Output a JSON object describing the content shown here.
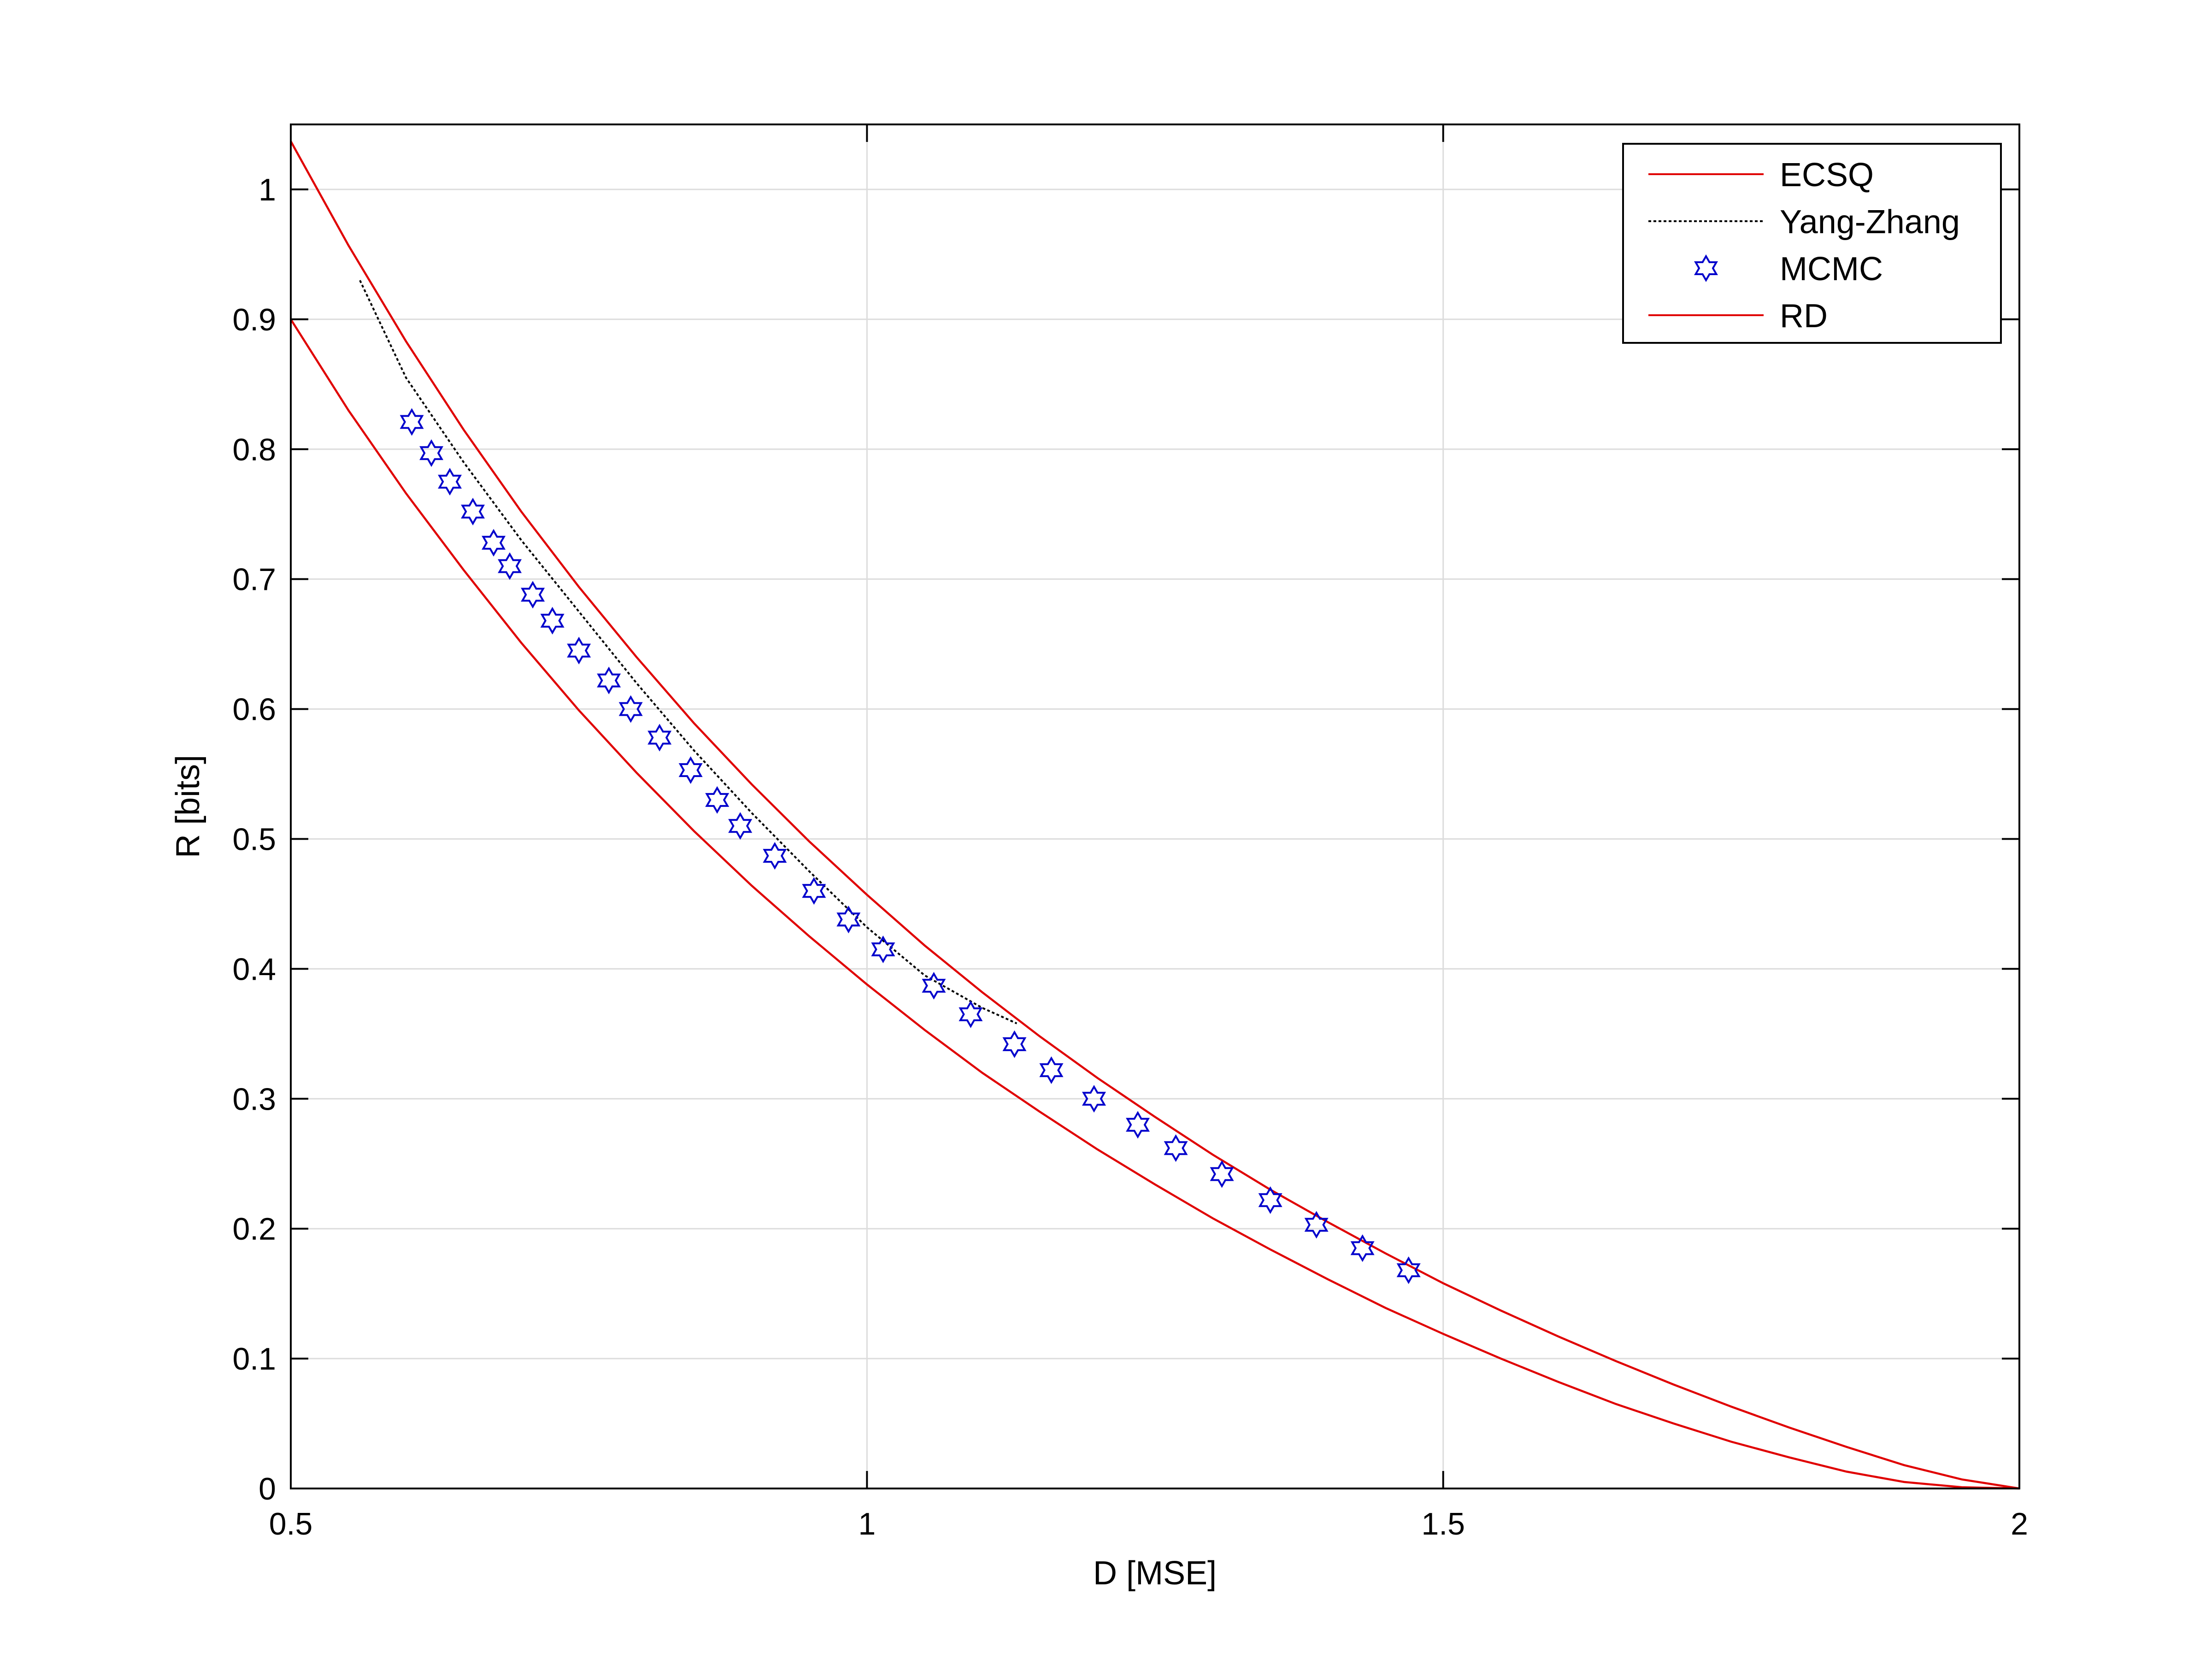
{
  "chart_data": {
    "type": "line",
    "title": "",
    "xlabel": "D [MSE]",
    "ylabel": "R [bits]",
    "xlim": [
      0.5,
      2
    ],
    "ylim": [
      0,
      1.05
    ],
    "xticks": [
      "0.5",
      "1",
      "1.5",
      "2"
    ],
    "yticks": [
      "0",
      "0.1",
      "0.2",
      "0.3",
      "0.4",
      "0.5",
      "0.6",
      "0.7",
      "0.8",
      "0.9",
      "1"
    ],
    "grid": true,
    "legend_position": "top-right",
    "series": [
      {
        "name": "ECSQ",
        "style": "solid",
        "color": "#e00000",
        "x": [
          0.5,
          0.55,
          0.6,
          0.65,
          0.7,
          0.75,
          0.8,
          0.85,
          0.9,
          0.95,
          1.0,
          1.05,
          1.1,
          1.15,
          1.2,
          1.25,
          1.3,
          1.35,
          1.4,
          1.45,
          1.5,
          1.55,
          1.6,
          1.65,
          1.7,
          1.75,
          1.8,
          1.85,
          1.9,
          1.95,
          2.0
        ],
        "y": [
          1.037,
          0.957,
          0.883,
          0.815,
          0.752,
          0.694,
          0.64,
          0.589,
          0.542,
          0.498,
          0.457,
          0.418,
          0.382,
          0.348,
          0.316,
          0.286,
          0.257,
          0.23,
          0.205,
          0.181,
          0.158,
          0.137,
          0.117,
          0.098,
          0.08,
          0.063,
          0.047,
          0.032,
          0.018,
          0.007,
          0.0
        ]
      },
      {
        "name": "Yang-Zhang",
        "style": "dotted",
        "color": "#000000",
        "x": [
          0.56,
          0.6,
          0.65,
          0.7,
          0.75,
          0.8,
          0.85,
          0.9,
          0.95,
          1.0,
          1.05,
          1.1,
          1.13
        ],
        "y": [
          0.93,
          0.855,
          0.79,
          0.73,
          0.675,
          0.62,
          0.568,
          0.52,
          0.475,
          0.432,
          0.395,
          0.37,
          0.358
        ]
      },
      {
        "name": "MCMC",
        "style": "markers",
        "marker": "hexagram",
        "color": "#0000cc",
        "x": [
          0.605,
          0.622,
          0.638,
          0.658,
          0.676,
          0.69,
          0.71,
          0.727,
          0.75,
          0.776,
          0.795,
          0.82,
          0.847,
          0.87,
          0.89,
          0.92,
          0.954,
          0.984,
          1.014,
          1.058,
          1.09,
          1.128,
          1.16,
          1.197,
          1.235,
          1.268,
          1.308,
          1.35,
          1.39,
          1.43,
          1.47
        ],
        "y": [
          0.821,
          0.797,
          0.775,
          0.752,
          0.728,
          0.71,
          0.688,
          0.668,
          0.645,
          0.622,
          0.6,
          0.578,
          0.553,
          0.53,
          0.51,
          0.487,
          0.46,
          0.438,
          0.415,
          0.387,
          0.365,
          0.342,
          0.322,
          0.3,
          0.28,
          0.262,
          0.242,
          0.222,
          0.203,
          0.185,
          0.168
        ]
      },
      {
        "name": "RD",
        "style": "solid",
        "color": "#e00000",
        "x": [
          0.5,
          0.55,
          0.6,
          0.65,
          0.7,
          0.75,
          0.8,
          0.85,
          0.9,
          0.95,
          1.0,
          1.05,
          1.1,
          1.15,
          1.2,
          1.25,
          1.3,
          1.35,
          1.4,
          1.45,
          1.5,
          1.55,
          1.6,
          1.65,
          1.7,
          1.75,
          1.8,
          1.85,
          1.9,
          1.95,
          2.0
        ],
        "y": [
          0.9,
          0.83,
          0.766,
          0.707,
          0.651,
          0.599,
          0.551,
          0.506,
          0.464,
          0.425,
          0.388,
          0.353,
          0.32,
          0.29,
          0.261,
          0.234,
          0.208,
          0.184,
          0.161,
          0.139,
          0.119,
          0.1,
          0.082,
          0.065,
          0.05,
          0.036,
          0.024,
          0.013,
          0.005,
          0.001,
          0.0
        ]
      }
    ]
  }
}
